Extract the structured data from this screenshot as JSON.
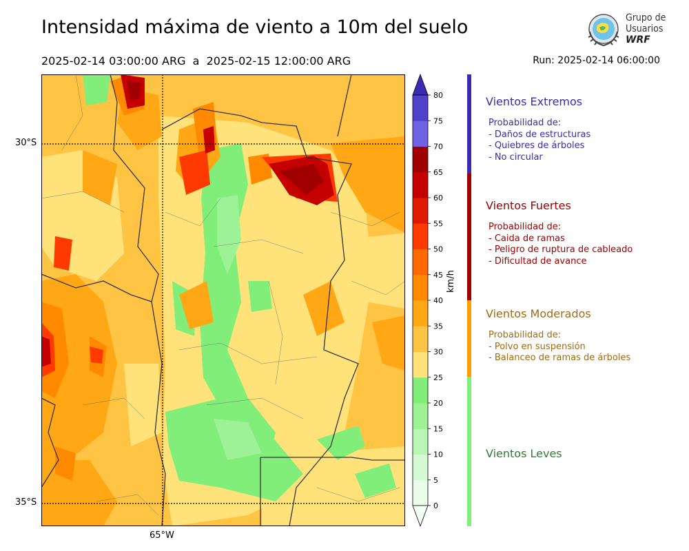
{
  "header": {
    "title": "Intensidad máxima de viento a 10m del suelo",
    "period": "2025-02-14 03:00:00 ARG  a  2025-02-15 12:00:00 ARG",
    "run": "Run: 2025-02-14 06:00:00"
  },
  "logo": {
    "line1": "Grupo de",
    "line2": "Usuarios",
    "line3": "WRF"
  },
  "map": {
    "lat_labels": [
      "30°S",
      "35°S"
    ],
    "lon_labels": [
      "65°W"
    ]
  },
  "colorbar": {
    "unit": "km/h",
    "ticks": [
      "0",
      "5",
      "10",
      "15",
      "20",
      "25",
      "30",
      "35",
      "40",
      "45",
      "50",
      "55",
      "60",
      "65",
      "70",
      "75",
      "80"
    ],
    "colors": [
      "#e9fde9",
      "#d4fad3",
      "#b9f6b5",
      "#9cf295",
      "#80ee79",
      "#ffe27a",
      "#ffc443",
      "#ffa715",
      "#ff8a00",
      "#ff6a00",
      "#ff3a00",
      "#e01a00",
      "#c40000",
      "#a00000",
      "#7062e0",
      "#5040cc",
      "#3b2bb8"
    ],
    "extend_top_color": "#3a2ab4",
    "extend_bottom_color": "#f2fff2"
  },
  "categories": [
    {
      "title": "Vientos Extremos",
      "color": "#3a2ab0",
      "desc": [
        "Probabilidad de:",
        "- Daños de estructuras",
        "- Quiebres de árboles",
        "- No circular"
      ]
    },
    {
      "title": "Vientos Fuertes",
      "color": "#a00000",
      "desc": [
        "Probabilidad de:",
        "- Caida de ramas",
        "- Peligro de ruptura de cableado",
        "- Dificultad de avance"
      ]
    },
    {
      "title": "Vientos Moderados",
      "color": "#a06a10",
      "desc": [
        "Probabilidad de:",
        "- Polvo en suspensión",
        "- Balanceo de ramas de árboles"
      ]
    },
    {
      "title": "Vientos Leves",
      "color": "#2e7d32",
      "desc": []
    }
  ],
  "category_bar_colors": [
    "#3a2ab4",
    "#a00000",
    "#ff9c00",
    "#7ff07a"
  ]
}
